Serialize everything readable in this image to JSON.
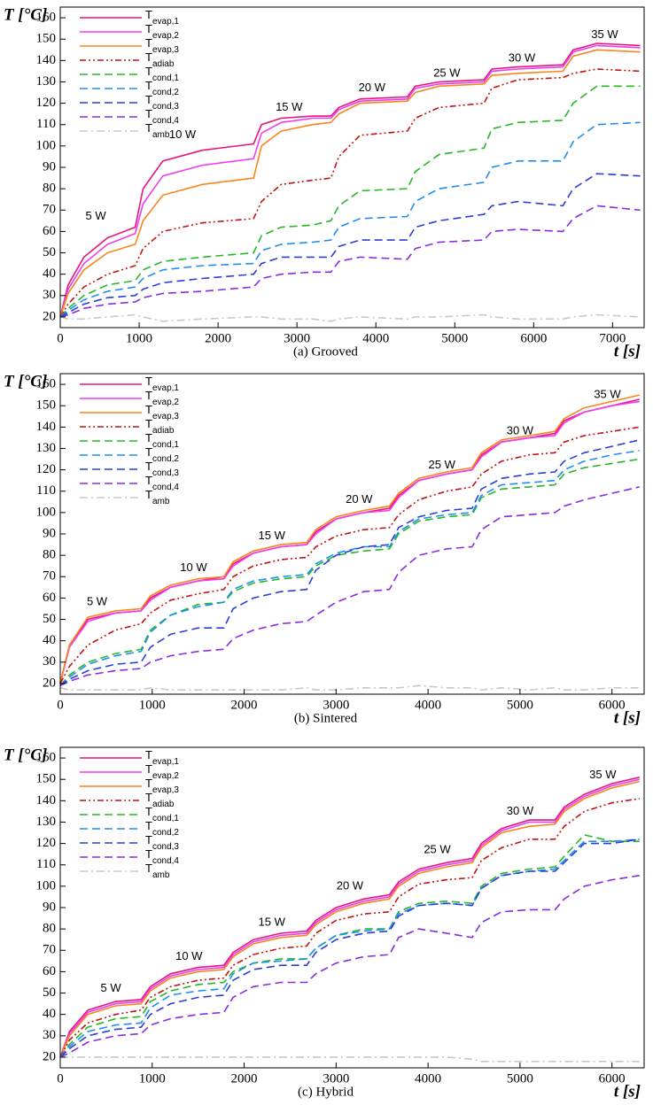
{
  "chart_data": [
    {
      "type": "line",
      "caption": "(a) Grooved",
      "ylabel": "T [°C]",
      "xlabel": "t [s]",
      "xlim": [
        0,
        7400
      ],
      "ylim": [
        15,
        165
      ],
      "xticks": [
        0,
        1000,
        2000,
        3000,
        4000,
        5000,
        6000,
        7000
      ],
      "yticks": [
        20,
        30,
        40,
        50,
        60,
        70,
        80,
        90,
        100,
        110,
        120,
        130,
        140,
        150,
        160
      ],
      "annotations": [
        "5 W",
        "10 W",
        "15 W",
        "20 W",
        "25 W",
        "30 W",
        "35 W"
      ],
      "x": [
        0,
        100,
        300,
        600,
        950,
        1050,
        1300,
        1800,
        2450,
        2550,
        2800,
        3200,
        3430,
        3530,
        3800,
        4400,
        4500,
        4800,
        5370,
        5470,
        5800,
        6370,
        6500,
        6800,
        7350
      ],
      "series": [
        {
          "name": "Tevap,1",
          "color": "#e6157f",
          "dash": "solid",
          "values": [
            20,
            35,
            48,
            57,
            62,
            80,
            93,
            98,
            101,
            110,
            113,
            114,
            114,
            118,
            122,
            123,
            128,
            130,
            131,
            136,
            137,
            138,
            145,
            148,
            147
          ]
        },
        {
          "name": "Tevap,2",
          "color": "#f03cf0",
          "dash": "solid",
          "values": [
            20,
            33,
            45,
            54,
            59,
            73,
            86,
            91,
            94,
            106,
            111,
            113,
            113,
            117,
            121,
            122,
            127,
            129,
            130,
            135,
            136,
            137,
            144,
            147,
            146
          ]
        },
        {
          "name": "Tevap,3",
          "color": "#f7861c",
          "dash": "solid",
          "values": [
            20,
            31,
            42,
            50,
            54,
            65,
            77,
            82,
            85,
            100,
            107,
            110,
            111,
            115,
            120,
            121,
            125,
            128,
            129,
            133,
            134,
            135,
            142,
            145,
            144
          ]
        },
        {
          "name": "Tadiab",
          "color": "#c0140f",
          "dash": "dashdotdot",
          "values": [
            20,
            26,
            34,
            40,
            44,
            52,
            60,
            64,
            66,
            74,
            82,
            84,
            85,
            95,
            105,
            107,
            113,
            118,
            120,
            127,
            131,
            132,
            134,
            136,
            135
          ]
        },
        {
          "name": "Tcond,1",
          "color": "#25b825",
          "dash": "dash",
          "values": [
            20,
            24,
            30,
            35,
            37,
            42,
            46,
            48,
            50,
            58,
            62,
            63,
            65,
            72,
            79,
            80,
            88,
            96,
            99,
            108,
            111,
            112,
            120,
            128,
            128
          ]
        },
        {
          "name": "Tcond,2",
          "color": "#1e8ff0",
          "dash": "dash",
          "values": [
            20,
            23,
            28,
            32,
            34,
            38,
            42,
            44,
            45,
            51,
            54,
            55,
            56,
            62,
            66,
            67,
            74,
            80,
            83,
            90,
            93,
            93,
            102,
            110,
            111
          ]
        },
        {
          "name": "Tcond,3",
          "color": "#2b3fd4",
          "dash": "dash",
          "values": [
            20,
            22,
            26,
            29,
            30,
            33,
            36,
            38,
            40,
            45,
            48,
            48,
            48,
            53,
            56,
            56,
            62,
            65,
            68,
            72,
            74,
            72,
            80,
            87,
            86
          ]
        },
        {
          "name": "Tcond,4",
          "color": "#8a2be2",
          "dash": "dash",
          "values": [
            20,
            21,
            24,
            26,
            27,
            29,
            31,
            32,
            34,
            38,
            40,
            41,
            41,
            46,
            48,
            47,
            52,
            55,
            56,
            60,
            61,
            60,
            66,
            72,
            70
          ]
        },
        {
          "name": "Tamb",
          "color": "#c8c8c8",
          "dash": "dashdot",
          "values": [
            20,
            19,
            19,
            20,
            21,
            20,
            18,
            19,
            20,
            20,
            19,
            19,
            18,
            19,
            20,
            19,
            20,
            20,
            21,
            20,
            19,
            19,
            20,
            21,
            20
          ]
        }
      ]
    },
    {
      "type": "line",
      "caption": "(b) Sintered",
      "ylabel": "T [°C]",
      "xlabel": "t [s]",
      "xlim": [
        0,
        6350
      ],
      "ylim": [
        15,
        165
      ],
      "xticks": [
        0,
        1000,
        2000,
        3000,
        4000,
        5000,
        6000
      ],
      "yticks": [
        20,
        30,
        40,
        50,
        60,
        70,
        80,
        90,
        100,
        110,
        120,
        130,
        140,
        150,
        160
      ],
      "annotations": [
        "5 W",
        "10 W",
        "15 W",
        "20 W",
        "25 W",
        "30 W",
        "35 W"
      ],
      "x": [
        0,
        100,
        300,
        600,
        880,
        980,
        1200,
        1500,
        1780,
        1880,
        2100,
        2400,
        2680,
        2780,
        3000,
        3300,
        3580,
        3680,
        3900,
        4200,
        4480,
        4580,
        4800,
        5100,
        5380,
        5480,
        5700,
        6000,
        6300
      ],
      "series": [
        {
          "name": "Tevap,1",
          "color": "#e6157f",
          "dash": "solid",
          "values": [
            20,
            38,
            50,
            53,
            54,
            60,
            65,
            68,
            70,
            76,
            81,
            84,
            85,
            91,
            97,
            100,
            102,
            108,
            115,
            118,
            120,
            127,
            133,
            135,
            137,
            143,
            147,
            150,
            153
          ]
        },
        {
          "name": "Tevap,2",
          "color": "#f03cf0",
          "dash": "solid",
          "values": [
            20,
            37,
            49,
            53,
            54,
            59,
            65,
            68,
            69,
            75,
            81,
            84,
            85,
            90,
            97,
            100,
            101,
            107,
            115,
            118,
            120,
            126,
            133,
            135,
            136,
            142,
            147,
            150,
            152
          ]
        },
        {
          "name": "Tevap,3",
          "color": "#f7861c",
          "dash": "solid",
          "values": [
            20,
            38,
            51,
            54,
            55,
            61,
            66,
            69,
            70,
            77,
            82,
            85,
            86,
            92,
            98,
            101,
            103,
            109,
            116,
            119,
            121,
            128,
            134,
            136,
            138,
            144,
            149,
            152,
            155
          ]
        },
        {
          "name": "Tadiab",
          "color": "#c0140f",
          "dash": "dashdotdot",
          "values": [
            20,
            28,
            38,
            45,
            48,
            53,
            59,
            62,
            64,
            70,
            75,
            78,
            79,
            84,
            89,
            92,
            93,
            99,
            106,
            110,
            112,
            118,
            124,
            127,
            128,
            133,
            136,
            138,
            140
          ]
        },
        {
          "name": "Tcond,1",
          "color": "#25b825",
          "dash": "dash",
          "values": [
            19,
            24,
            30,
            34,
            36,
            45,
            52,
            57,
            58,
            63,
            67,
            69,
            70,
            75,
            80,
            82,
            83,
            90,
            96,
            98,
            99,
            107,
            111,
            112,
            113,
            118,
            121,
            123,
            125
          ]
        },
        {
          "name": "Tcond,2",
          "color": "#1e8ff0",
          "dash": "dash",
          "values": [
            19,
            23,
            29,
            33,
            35,
            44,
            52,
            56,
            58,
            64,
            68,
            70,
            71,
            76,
            81,
            84,
            84,
            91,
            97,
            99,
            100,
            108,
            113,
            114,
            115,
            120,
            124,
            127,
            129
          ]
        },
        {
          "name": "Tcond,3",
          "color": "#2b3fd4",
          "dash": "dash",
          "values": [
            19,
            22,
            26,
            29,
            30,
            37,
            43,
            46,
            46,
            55,
            60,
            63,
            64,
            73,
            80,
            84,
            85,
            93,
            98,
            101,
            102,
            111,
            116,
            118,
            119,
            124,
            128,
            131,
            134
          ]
        },
        {
          "name": "Tcond,4",
          "color": "#8a2be2",
          "dash": "dash",
          "values": [
            19,
            21,
            24,
            26,
            27,
            30,
            33,
            35,
            36,
            41,
            45,
            48,
            49,
            52,
            58,
            63,
            64,
            72,
            80,
            83,
            84,
            92,
            98,
            99,
            100,
            103,
            106,
            109,
            112
          ]
        },
        {
          "name": "Tamb",
          "color": "#c8c8c8",
          "dash": "dashdot",
          "values": [
            18,
            17,
            17,
            17,
            17,
            18,
            17,
            17,
            17,
            17,
            17,
            17,
            18,
            17,
            17,
            18,
            18,
            18,
            19,
            18,
            18,
            17,
            18,
            17,
            18,
            17,
            17,
            18,
            18
          ]
        }
      ]
    },
    {
      "type": "line",
      "caption": "(c) Hybrid",
      "ylabel": "T [°C]",
      "xlabel": "t [s]",
      "xlim": [
        0,
        6350
      ],
      "ylim": [
        15,
        165
      ],
      "xticks": [
        0,
        1000,
        2000,
        3000,
        4000,
        5000,
        6000
      ],
      "yticks": [
        20,
        30,
        40,
        50,
        60,
        70,
        80,
        90,
        100,
        110,
        120,
        130,
        140,
        150,
        160
      ],
      "annotations": [
        "5 W",
        "10 W",
        "15 W",
        "20 W",
        "25 W",
        "30 W",
        "35 W"
      ],
      "x": [
        0,
        100,
        300,
        600,
        880,
        980,
        1200,
        1500,
        1780,
        1880,
        2100,
        2400,
        2680,
        2780,
        3000,
        3300,
        3580,
        3680,
        3900,
        4200,
        4480,
        4580,
        4800,
        5100,
        5380,
        5480,
        5700,
        6000,
        6300
      ],
      "series": [
        {
          "name": "Tevap,1",
          "color": "#e6157f",
          "dash": "solid",
          "values": [
            20,
            32,
            42,
            46,
            47,
            53,
            59,
            62,
            63,
            69,
            75,
            78,
            79,
            84,
            90,
            94,
            96,
            102,
            108,
            111,
            113,
            120,
            127,
            131,
            131,
            137,
            143,
            148,
            151
          ]
        },
        {
          "name": "Tevap,2",
          "color": "#f03cf0",
          "dash": "solid",
          "values": [
            20,
            31,
            41,
            45,
            46,
            52,
            58,
            61,
            62,
            68,
            74,
            77,
            78,
            83,
            89,
            93,
            95,
            101,
            107,
            110,
            112,
            119,
            126,
            130,
            130,
            136,
            142,
            147,
            150
          ]
        },
        {
          "name": "Tevap,3",
          "color": "#f7861c",
          "dash": "solid",
          "values": [
            20,
            30,
            40,
            44,
            45,
            51,
            57,
            60,
            61,
            67,
            73,
            76,
            77,
            82,
            88,
            92,
            94,
            100,
            106,
            109,
            111,
            118,
            125,
            128,
            129,
            135,
            141,
            146,
            149
          ]
        },
        {
          "name": "Tadiab",
          "color": "#c0140f",
          "dash": "dashdotdot",
          "values": [
            20,
            28,
            36,
            40,
            42,
            48,
            53,
            56,
            57,
            63,
            68,
            71,
            72,
            78,
            84,
            87,
            88,
            95,
            101,
            103,
            104,
            112,
            118,
            122,
            122,
            128,
            135,
            139,
            141
          ]
        },
        {
          "name": "Tcond,1",
          "color": "#25b825",
          "dash": "dash",
          "values": [
            20,
            26,
            34,
            38,
            39,
            46,
            51,
            54,
            55,
            60,
            64,
            66,
            66,
            71,
            77,
            80,
            80,
            88,
            92,
            93,
            92,
            100,
            106,
            108,
            109,
            114,
            124,
            121,
            121
          ]
        },
        {
          "name": "Tcond,2",
          "color": "#1e8ff0",
          "dash": "dash",
          "values": [
            20,
            25,
            32,
            35,
            36,
            43,
            49,
            51,
            52,
            59,
            64,
            65,
            66,
            71,
            77,
            79,
            80,
            87,
            91,
            92,
            91,
            99,
            105,
            107,
            108,
            112,
            121,
            121,
            122
          ]
        },
        {
          "name": "Tcond,3",
          "color": "#2b3fd4",
          "dash": "dash",
          "values": [
            20,
            24,
            30,
            33,
            34,
            40,
            45,
            48,
            49,
            56,
            61,
            63,
            63,
            69,
            75,
            78,
            79,
            86,
            91,
            92,
            91,
            99,
            105,
            107,
            107,
            111,
            120,
            120,
            122
          ]
        },
        {
          "name": "Tcond,4",
          "color": "#8a2be2",
          "dash": "dash",
          "values": [
            20,
            22,
            27,
            30,
            31,
            35,
            38,
            40,
            41,
            48,
            53,
            55,
            55,
            59,
            64,
            67,
            68,
            76,
            80,
            78,
            76,
            83,
            88,
            89,
            89,
            94,
            100,
            103,
            105
          ]
        },
        {
          "name": "Tamb",
          "color": "#c8c8c8",
          "dash": "dashdot",
          "values": [
            20,
            20,
            20,
            20,
            20,
            20,
            20,
            20,
            20,
            20,
            20,
            20,
            20,
            20,
            20,
            20,
            20,
            20,
            20,
            20,
            19,
            18,
            18,
            18,
            18,
            18,
            18,
            18,
            18
          ]
        }
      ]
    }
  ]
}
